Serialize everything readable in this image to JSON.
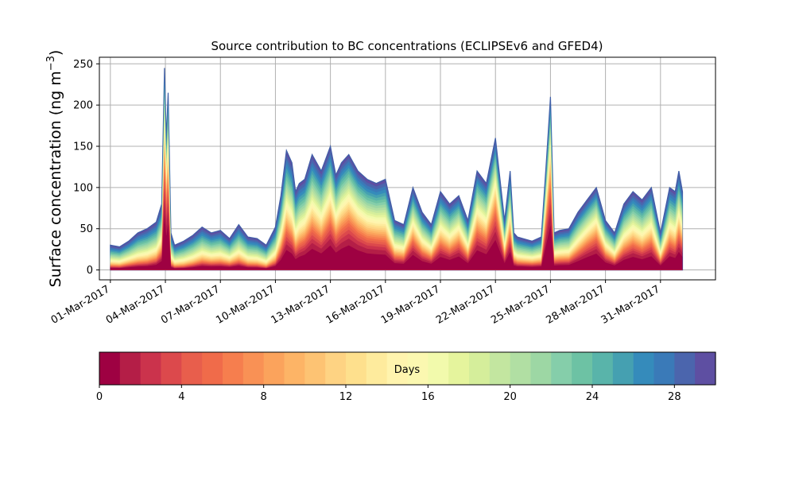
{
  "chart_data": {
    "type": "area",
    "title": "Source contribution to BC concentrations (ECLIPSEv6 and GFED4)",
    "ylabel_main": "Surface concentration (ng m",
    "ylabel_sup": "−3",
    "ylabel_close": ")",
    "xlabel": "",
    "ylim": [
      -12,
      258
    ],
    "yticks": [
      0,
      50,
      100,
      150,
      200,
      250
    ],
    "xlim": [
      -0.6,
      33.0
    ],
    "grid": true,
    "x_tick_positions": [
      0,
      3,
      6,
      9,
      12,
      15,
      18,
      21,
      24,
      27,
      30
    ],
    "x_tick_labels": [
      "01-Mar-2017",
      "04-Mar-2017",
      "07-Mar-2017",
      "10-Mar-2017",
      "13-Mar-2017",
      "16-Mar-2017",
      "19-Mar-2017",
      "22-Mar-2017",
      "25-Mar-2017",
      "28-Mar-2017",
      "31-Mar-2017"
    ],
    "total_series": {
      "x": [
        0,
        0.5,
        1.0,
        1.5,
        2.0,
        2.5,
        2.8,
        2.95,
        3.05,
        3.15,
        3.3,
        3.5,
        4.0,
        4.5,
        5.0,
        5.5,
        6.0,
        6.5,
        7.0,
        7.5,
        8.0,
        8.5,
        9.0,
        9.3,
        9.6,
        9.9,
        10.1,
        10.3,
        10.6,
        11.0,
        11.5,
        12.0,
        12.3,
        12.6,
        13.0,
        13.5,
        14.0,
        14.5,
        15.0,
        15.5,
        16.0,
        16.5,
        17.0,
        17.5,
        18.0,
        18.5,
        19.0,
        19.5,
        20.0,
        20.5,
        21.0,
        21.5,
        21.8,
        22.0,
        22.2,
        22.5,
        23.0,
        23.5,
        23.8,
        24.0,
        24.2,
        24.5,
        25.0,
        25.5,
        26.0,
        26.5,
        27.0,
        27.5,
        28.0,
        28.5,
        29.0,
        29.5,
        30.0,
        30.5,
        30.8,
        31.0,
        31.2
      ],
      "y": [
        30,
        28,
        35,
        45,
        50,
        58,
        80,
        245,
        160,
        215,
        45,
        30,
        35,
        42,
        52,
        45,
        48,
        38,
        55,
        40,
        38,
        30,
        52,
        90,
        145,
        130,
        95,
        105,
        110,
        140,
        120,
        150,
        115,
        130,
        140,
        120,
        110,
        105,
        110,
        60,
        55,
        100,
        70,
        55,
        95,
        80,
        90,
        60,
        120,
        105,
        160,
        60,
        120,
        45,
        40,
        38,
        35,
        40,
        140,
        210,
        45,
        48,
        50,
        70,
        85,
        100,
        60,
        45,
        80,
        95,
        85,
        100,
        45,
        100,
        95,
        120,
        95
      ],
      "fresh_fraction": [
        0.25,
        0.25,
        0.3,
        0.3,
        0.3,
        0.35,
        0.45,
        0.9,
        0.85,
        0.85,
        0.25,
        0.2,
        0.2,
        0.25,
        0.3,
        0.3,
        0.3,
        0.3,
        0.3,
        0.25,
        0.25,
        0.2,
        0.3,
        0.45,
        0.55,
        0.5,
        0.45,
        0.5,
        0.55,
        0.6,
        0.55,
        0.65,
        0.6,
        0.65,
        0.7,
        0.65,
        0.6,
        0.6,
        0.55,
        0.45,
        0.45,
        0.6,
        0.5,
        0.45,
        0.55,
        0.5,
        0.6,
        0.45,
        0.65,
        0.6,
        0.75,
        0.45,
        0.6,
        0.4,
        0.35,
        0.35,
        0.35,
        0.35,
        0.8,
        0.85,
        0.4,
        0.4,
        0.4,
        0.5,
        0.6,
        0.65,
        0.5,
        0.4,
        0.5,
        0.55,
        0.5,
        0.55,
        0.4,
        0.55,
        0.5,
        0.6,
        0.55
      ]
    },
    "colorbar": {
      "label": "Days",
      "range": [
        0,
        30
      ],
      "ticks": [
        0,
        4,
        8,
        12,
        16,
        20,
        24,
        28
      ],
      "colors": [
        "#9e0142",
        "#b41e47",
        "#cb334c",
        "#dc494c",
        "#e85e4c",
        "#f06b4a",
        "#f67e4e",
        "#f99155",
        "#fba35c",
        "#fdb466",
        "#fdc373",
        "#fed383",
        "#fee08d",
        "#feeb9d",
        "#fff4ae",
        "#fbf8b0",
        "#f2faac",
        "#e5f49d",
        "#d5ee9b",
        "#c3e6a0",
        "#b1dfa3",
        "#9dd7a4",
        "#85ceaa",
        "#6dc2a4",
        "#59b4aa",
        "#45a0b1",
        "#358bbb",
        "#3a7ab8",
        "#4b65ad",
        "#5e4fa2"
      ]
    }
  }
}
